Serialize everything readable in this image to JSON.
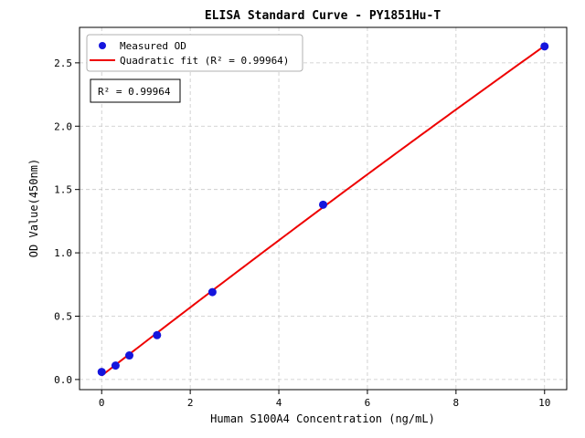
{
  "chart_data": {
    "type": "scatter",
    "title": "ELISA Standard Curve - PY1851Hu-T",
    "xlabel": "Human S100A4 Concentration (ng/mL)",
    "ylabel": "OD Value(450nm)",
    "xlim": [
      -0.5,
      10.5
    ],
    "ylim": [
      -0.08,
      2.78
    ],
    "xticks": [
      0,
      2,
      4,
      6,
      8,
      10
    ],
    "yticks": [
      0.0,
      0.5,
      1.0,
      1.5,
      2.0,
      2.5
    ],
    "grid": true,
    "grid_style": "dashed",
    "legend_position": "upper left",
    "series": [
      {
        "name": "Measured OD",
        "type": "scatter",
        "color": "#1515dd",
        "x": [
          0,
          0.313,
          0.625,
          1.25,
          2.5,
          5,
          10
        ],
        "y": [
          0.06,
          0.11,
          0.19,
          0.35,
          0.69,
          1.38,
          2.63
        ]
      },
      {
        "name": "Quadratic fit (R² = 0.99964)",
        "type": "line",
        "fit": "quadratic",
        "color": "#ee0000"
      }
    ],
    "annotation": "R² = 0.99964",
    "r_squared": 0.99964
  }
}
